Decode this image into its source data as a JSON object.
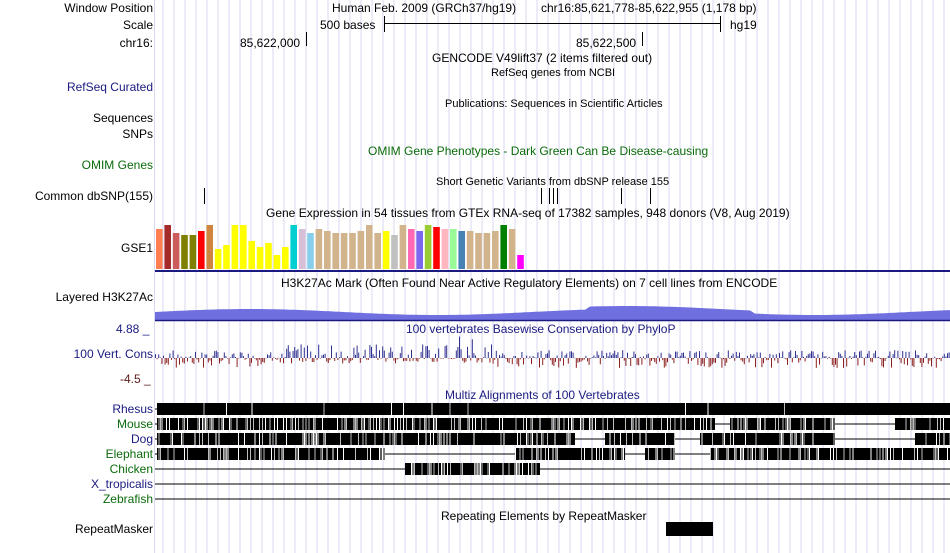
{
  "labels": {
    "window_position": "Window Position",
    "scale": "Scale",
    "chrom": "chr16:",
    "refseq": "RefSeq Curated",
    "sequences": "Sequences",
    "snps": "SNPs",
    "omim": "OMIM Genes",
    "dbsnp": "Common dbSNP(155)",
    "gse1": "GSE1",
    "h3k27ac": "Layered H3K27Ac",
    "cons": "100 Vert. Cons",
    "repeatmasker": "RepeatMasker"
  },
  "header": {
    "assembly": "Human Feb. 2009 (GRCh37/hg19)",
    "position": "chr16:85,621,778-85,622,955 (1,178 bp)",
    "scale_text": "500 bases",
    "scale_db": "hg19",
    "coord1": "85,622,000",
    "coord2": "85,622,500"
  },
  "tracks": {
    "gencode": "GENCODE V49lift37 (2 items filtered out)",
    "refseq_desc": "RefSeq genes from NCBI",
    "publications": "Publications: Sequences in Scientific Articles",
    "omim_desc": "OMIM Gene Phenotypes - Dark Green Can Be Disease-causing",
    "dbsnp_desc": "Short Genetic Variants from dbSNP release 155",
    "gtex_desc": "Gene Expression in 54 tissues from GTEx RNA-seq of 17382 samples, 948 donors (V8, Aug 2019)",
    "h3k27ac_desc": "H3K27Ac Mark (Often Found Near Active Regulatory Elements) on 7 cell lines from ENCODE",
    "phylop_desc": "100 vertebrates Basewise Conservation by PhyloP",
    "phylop_max": "4.88 _",
    "phylop_min": "-4.5 _",
    "multiz_desc": "Multiz Alignments of 100 Vertebrates",
    "repeat_desc": "Repeating Elements by RepeatMasker"
  },
  "species": [
    {
      "name": "Rhesus",
      "color": "#1a1a80"
    },
    {
      "name": "Mouse",
      "color": "#0a6b0a"
    },
    {
      "name": "Dog",
      "color": "#1a1a80"
    },
    {
      "name": "Elephant",
      "color": "#0a6b0a"
    },
    {
      "name": "Chicken",
      "color": "#0a6b0a"
    },
    {
      "name": "X_tropicalis",
      "color": "#1a1a80"
    },
    {
      "name": "Zebrafish",
      "color": "#0a6b0a"
    }
  ],
  "gtex_colors": [
    "#ff7f50",
    "#a52a2a",
    "#cd5c5c",
    "#808000",
    "#808000",
    "#ff0000",
    "#cd853f",
    "#ffff00",
    "#ffff00",
    "#ffff00",
    "#ffff00",
    "#ffff00",
    "#ffff00",
    "#ffff00",
    "#ffff00",
    "#ffff00",
    "#00ced1",
    "#d8bfd8",
    "#87ceeb",
    "#d2b48c",
    "#d2b48c",
    "#d2b48c",
    "#d2b48c",
    "#d2b48c",
    "#d2b48c",
    "#d2b48c",
    "#d2b48c",
    "#ffff00",
    "#c0c0c0",
    "#d2b48c",
    "#ff69b4",
    "#7b68ee",
    "#9acd32",
    "#ff0000",
    "#ffb6c1",
    "#98fb98",
    "#4682b4",
    "#d2b48c",
    "#d2b48c",
    "#d2b48c",
    "#d2b48c",
    "#008000",
    "#d2b48c",
    "#ff00ff"
  ],
  "colors": {
    "navy": "#1a1a80",
    "green": "#0a6b0a",
    "h3k27ac": "#6f6fe0",
    "phylop_pos": "#303090",
    "phylop_neg": "#8b2020",
    "guide": "#d8d8f0"
  }
}
